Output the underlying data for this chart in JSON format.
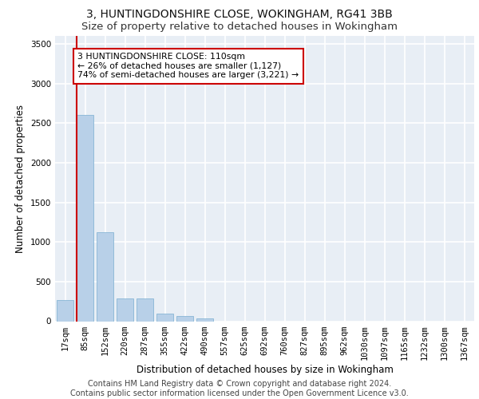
{
  "title_line1": "3, HUNTINGDONSHIRE CLOSE, WOKINGHAM, RG41 3BB",
  "title_line2": "Size of property relative to detached houses in Wokingham",
  "xlabel": "Distribution of detached houses by size in Wokingham",
  "ylabel": "Number of detached properties",
  "footer_line1": "Contains HM Land Registry data © Crown copyright and database right 2024.",
  "footer_line2": "Contains public sector information licensed under the Open Government Licence v3.0.",
  "categories": [
    "17sqm",
    "85sqm",
    "152sqm",
    "220sqm",
    "287sqm",
    "355sqm",
    "422sqm",
    "490sqm",
    "557sqm",
    "625sqm",
    "692sqm",
    "760sqm",
    "827sqm",
    "895sqm",
    "962sqm",
    "1030sqm",
    "1097sqm",
    "1165sqm",
    "1232sqm",
    "1300sqm",
    "1367sqm"
  ],
  "values": [
    270,
    2600,
    1120,
    285,
    285,
    95,
    65,
    40,
    0,
    0,
    0,
    0,
    0,
    0,
    0,
    0,
    0,
    0,
    0,
    0,
    0
  ],
  "bar_color": "#b8d0e8",
  "bar_edge_color": "#7aaed0",
  "annotation_text": "3 HUNTINGDONSHIRE CLOSE: 110sqm\n← 26% of detached houses are smaller (1,127)\n74% of semi-detached houses are larger (3,221) →",
  "annotation_box_color": "#ffffff",
  "annotation_box_edge_color": "#cc0000",
  "vline_color": "#cc0000",
  "ylim": [
    0,
    3600
  ],
  "yticks": [
    0,
    500,
    1000,
    1500,
    2000,
    2500,
    3000,
    3500
  ],
  "background_color": "#e8eef5",
  "grid_color": "#ffffff",
  "title_fontsize": 10,
  "subtitle_fontsize": 9.5,
  "axis_label_fontsize": 8.5,
  "tick_fontsize": 7.5,
  "footer_fontsize": 7
}
